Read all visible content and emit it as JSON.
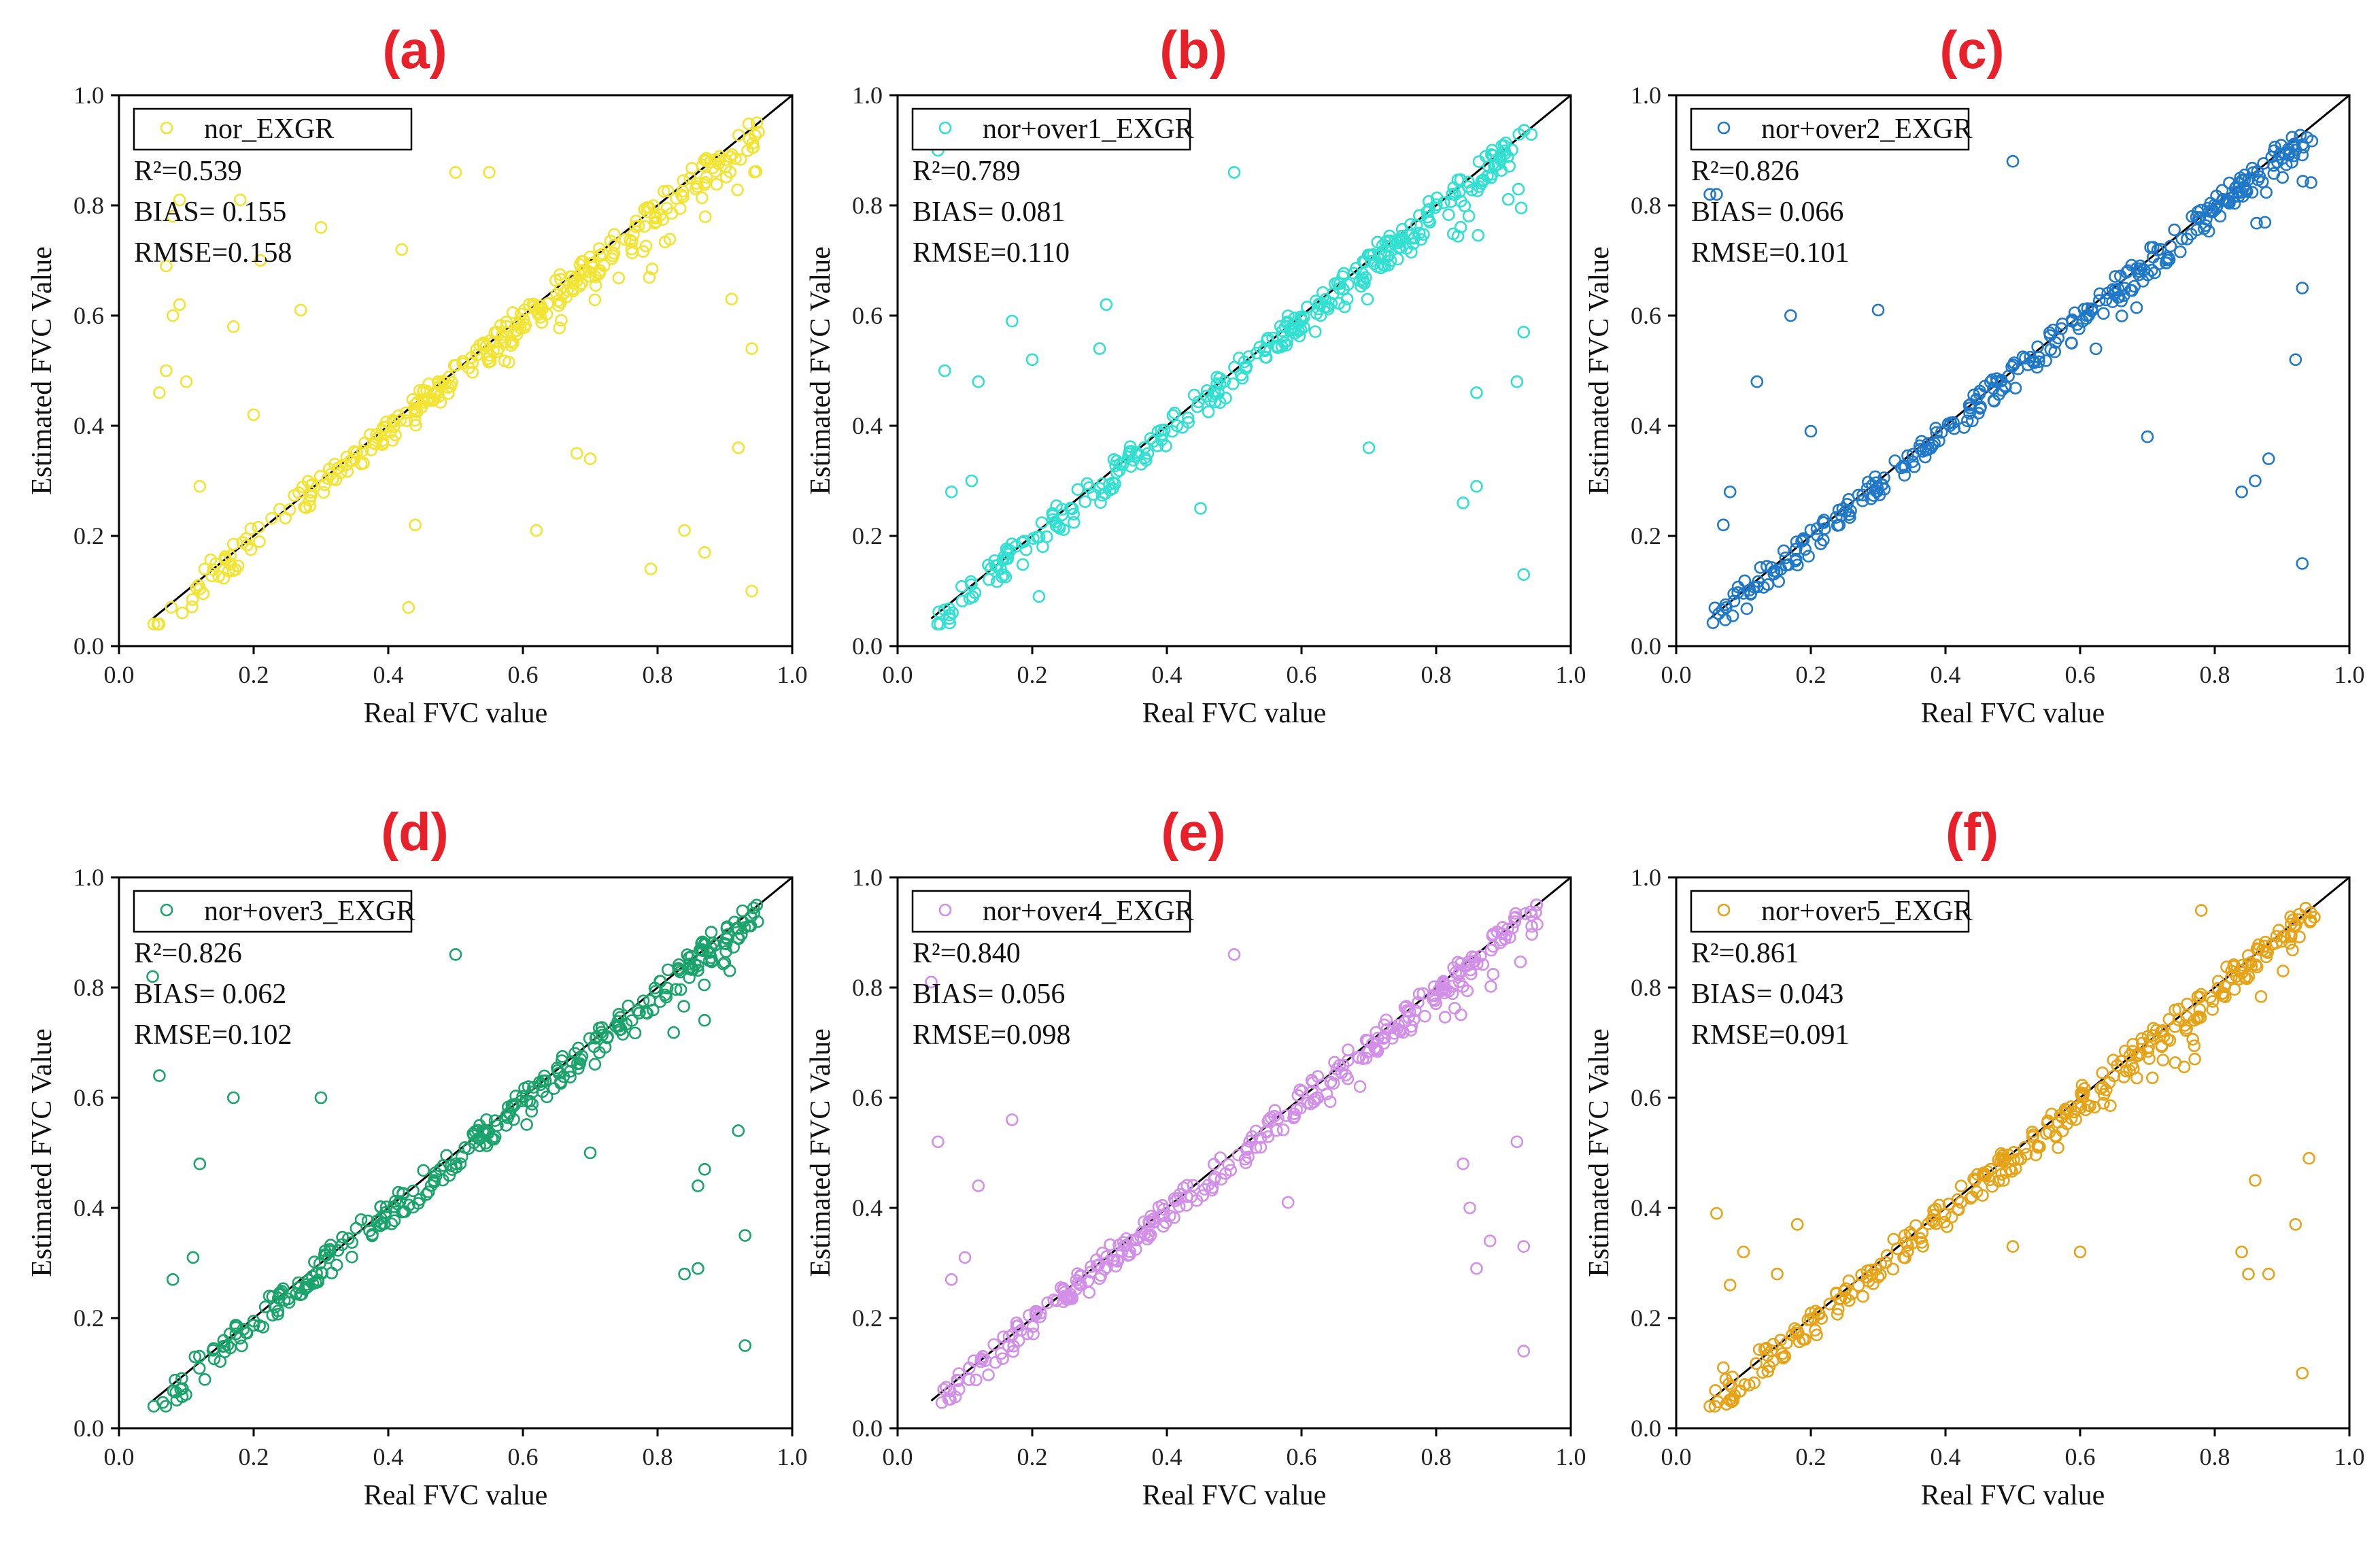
{
  "chart_data": [
    {
      "type": "scatter",
      "label": "(a)",
      "series_name": "nor_EXGR",
      "color": "#f2e430",
      "stats": {
        "r2": "R²=0.539",
        "bias": "BIAS= 0.155",
        "rmse": "RMSE=0.158"
      },
      "xlabel": "Real FVC value",
      "ylabel": "Estimated FVC Value",
      "xlim": [
        0,
        1
      ],
      "ylim": [
        0,
        1
      ],
      "xticks": [
        "0.0",
        "0.2",
        "0.4",
        "0.6",
        "0.8",
        "1.0"
      ],
      "yticks": [
        "0.0",
        "0.2",
        "0.4",
        "0.6",
        "0.8",
        "1.0"
      ],
      "spread": 0.42,
      "seed": 11,
      "outliers": [
        [
          0.06,
          0.46
        ],
        [
          0.07,
          0.5
        ],
        [
          0.08,
          0.6
        ],
        [
          0.09,
          0.62
        ],
        [
          0.08,
          0.78
        ],
        [
          0.09,
          0.81
        ],
        [
          0.07,
          0.69
        ],
        [
          0.1,
          0.48
        ],
        [
          0.12,
          0.29
        ],
        [
          0.17,
          0.58
        ],
        [
          0.18,
          0.81
        ],
        [
          0.2,
          0.42
        ],
        [
          0.21,
          0.7
        ],
        [
          0.27,
          0.61
        ],
        [
          0.3,
          0.76
        ],
        [
          0.42,
          0.72
        ],
        [
          0.43,
          0.07
        ],
        [
          0.44,
          0.22
        ],
        [
          0.5,
          0.86
        ],
        [
          0.55,
          0.86
        ],
        [
          0.62,
          0.21
        ],
        [
          0.68,
          0.35
        ],
        [
          0.7,
          0.34
        ],
        [
          0.79,
          0.14
        ],
        [
          0.84,
          0.21
        ],
        [
          0.87,
          0.17
        ],
        [
          0.91,
          0.63
        ],
        [
          0.92,
          0.36
        ],
        [
          0.94,
          0.1
        ],
        [
          0.94,
          0.54
        ]
      ]
    },
    {
      "type": "scatter",
      "label": "(b)",
      "series_name": "nor+over1_EXGR",
      "color": "#30e0d0",
      "stats": {
        "r2": "R²=0.789",
        "bias": "BIAS= 0.081",
        "rmse": "RMSE=0.110"
      },
      "xlabel": "Real FVC value",
      "ylabel": "Estimated FVC Value",
      "xlim": [
        0,
        1
      ],
      "ylim": [
        0,
        1
      ],
      "xticks": [
        "0.0",
        "0.2",
        "0.4",
        "0.6",
        "0.8",
        "1.0"
      ],
      "yticks": [
        "0.0",
        "0.2",
        "0.4",
        "0.6",
        "0.8",
        "1.0"
      ],
      "spread": 0.26,
      "seed": 23,
      "outliers": [
        [
          0.06,
          0.9
        ],
        [
          0.07,
          0.5
        ],
        [
          0.08,
          0.28
        ],
        [
          0.11,
          0.3
        ],
        [
          0.12,
          0.48
        ],
        [
          0.17,
          0.59
        ],
        [
          0.2,
          0.52
        ],
        [
          0.21,
          0.09
        ],
        [
          0.3,
          0.54
        ],
        [
          0.31,
          0.62
        ],
        [
          0.45,
          0.25
        ],
        [
          0.5,
          0.86
        ],
        [
          0.7,
          0.36
        ],
        [
          0.84,
          0.26
        ],
        [
          0.86,
          0.29
        ],
        [
          0.86,
          0.46
        ],
        [
          0.92,
          0.48
        ],
        [
          0.93,
          0.13
        ],
        [
          0.93,
          0.57
        ]
      ]
    },
    {
      "type": "scatter",
      "label": "(c)",
      "series_name": "nor+over2_EXGR",
      "color": "#1f78c8",
      "stats": {
        "r2": "R²=0.826",
        "bias": "BIAS= 0.066",
        "rmse": "RMSE=0.101"
      },
      "xlabel": "Real FVC value",
      "ylabel": "Estimated FVC Value",
      "xlim": [
        0,
        1
      ],
      "ylim": [
        0,
        1
      ],
      "xticks": [
        "0.0",
        "0.2",
        "0.4",
        "0.6",
        "0.8",
        "1.0"
      ],
      "yticks": [
        "0.0",
        "0.2",
        "0.4",
        "0.6",
        "0.8",
        "1.0"
      ],
      "spread": 0.22,
      "seed": 37,
      "outliers": [
        [
          0.05,
          0.82
        ],
        [
          0.06,
          0.82
        ],
        [
          0.07,
          0.22
        ],
        [
          0.08,
          0.28
        ],
        [
          0.12,
          0.48
        ],
        [
          0.17,
          0.6
        ],
        [
          0.2,
          0.39
        ],
        [
          0.3,
          0.61
        ],
        [
          0.5,
          0.88
        ],
        [
          0.7,
          0.38
        ],
        [
          0.84,
          0.28
        ],
        [
          0.86,
          0.3
        ],
        [
          0.88,
          0.34
        ],
        [
          0.92,
          0.52
        ],
        [
          0.93,
          0.15
        ],
        [
          0.93,
          0.65
        ]
      ]
    },
    {
      "type": "scatter",
      "label": "(d)",
      "series_name": "nor+over3_EXGR",
      "color": "#1aa36a",
      "stats": {
        "r2": "R²=0.826",
        "bias": "BIAS= 0.062",
        "rmse": "RMSE=0.102"
      },
      "xlabel": "Real FVC value",
      "ylabel": "Estimated FVC Value",
      "xlim": [
        0,
        1
      ],
      "ylim": [
        0,
        1
      ],
      "xticks": [
        "0.0",
        "0.2",
        "0.4",
        "0.6",
        "0.8",
        "1.0"
      ],
      "yticks": [
        "0.0",
        "0.2",
        "0.4",
        "0.6",
        "0.8",
        "1.0"
      ],
      "spread": 0.22,
      "seed": 41,
      "outliers": [
        [
          0.05,
          0.82
        ],
        [
          0.06,
          0.64
        ],
        [
          0.08,
          0.27
        ],
        [
          0.11,
          0.31
        ],
        [
          0.12,
          0.48
        ],
        [
          0.17,
          0.6
        ],
        [
          0.3,
          0.6
        ],
        [
          0.5,
          0.86
        ],
        [
          0.7,
          0.5
        ],
        [
          0.84,
          0.28
        ],
        [
          0.86,
          0.29
        ],
        [
          0.86,
          0.44
        ],
        [
          0.87,
          0.47
        ],
        [
          0.92,
          0.54
        ],
        [
          0.93,
          0.15
        ],
        [
          0.93,
          0.35
        ]
      ]
    },
    {
      "type": "scatter",
      "label": "(e)",
      "series_name": "nor+over4_EXGR",
      "color": "#d28fe8",
      "stats": {
        "r2": "R²=0.840",
        "bias": "BIAS= 0.056",
        "rmse": "RMSE=0.098"
      },
      "xlabel": "Real FVC value",
      "ylabel": "Estimated FVC Value",
      "xlim": [
        0,
        1
      ],
      "ylim": [
        0,
        1
      ],
      "xticks": [
        "0.0",
        "0.2",
        "0.4",
        "0.6",
        "0.8",
        "1.0"
      ],
      "yticks": [
        "0.0",
        "0.2",
        "0.4",
        "0.6",
        "0.8",
        "1.0"
      ],
      "spread": 0.2,
      "seed": 53,
      "outliers": [
        [
          0.05,
          0.81
        ],
        [
          0.06,
          0.52
        ],
        [
          0.08,
          0.27
        ],
        [
          0.1,
          0.31
        ],
        [
          0.12,
          0.44
        ],
        [
          0.17,
          0.56
        ],
        [
          0.5,
          0.86
        ],
        [
          0.58,
          0.41
        ],
        [
          0.84,
          0.48
        ],
        [
          0.85,
          0.4
        ],
        [
          0.86,
          0.29
        ],
        [
          0.88,
          0.34
        ],
        [
          0.92,
          0.52
        ],
        [
          0.93,
          0.14
        ],
        [
          0.93,
          0.33
        ]
      ]
    },
    {
      "type": "scatter",
      "label": "(f)",
      "series_name": "nor+over5_EXGR",
      "color": "#e6a317",
      "stats": {
        "r2": "R²=0.861",
        "bias": "BIAS= 0.043",
        "rmse": "RMSE=0.091"
      },
      "xlabel": "Real FVC value",
      "ylabel": "Estimated FVC Value",
      "xlim": [
        0,
        1
      ],
      "ylim": [
        0,
        1
      ],
      "xticks": [
        "0.0",
        "0.2",
        "0.4",
        "0.6",
        "0.8",
        "1.0"
      ],
      "yticks": [
        "0.0",
        "0.2",
        "0.4",
        "0.6",
        "0.8",
        "1.0"
      ],
      "spread": 0.2,
      "seed": 67,
      "outliers": [
        [
          0.06,
          0.39
        ],
        [
          0.07,
          0.11
        ],
        [
          0.08,
          0.26
        ],
        [
          0.1,
          0.32
        ],
        [
          0.15,
          0.28
        ],
        [
          0.18,
          0.37
        ],
        [
          0.5,
          0.33
        ],
        [
          0.6,
          0.32
        ],
        [
          0.78,
          0.94
        ],
        [
          0.84,
          0.32
        ],
        [
          0.85,
          0.28
        ],
        [
          0.86,
          0.45
        ],
        [
          0.88,
          0.28
        ],
        [
          0.92,
          0.37
        ],
        [
          0.93,
          0.1
        ],
        [
          0.94,
          0.49
        ]
      ]
    }
  ]
}
